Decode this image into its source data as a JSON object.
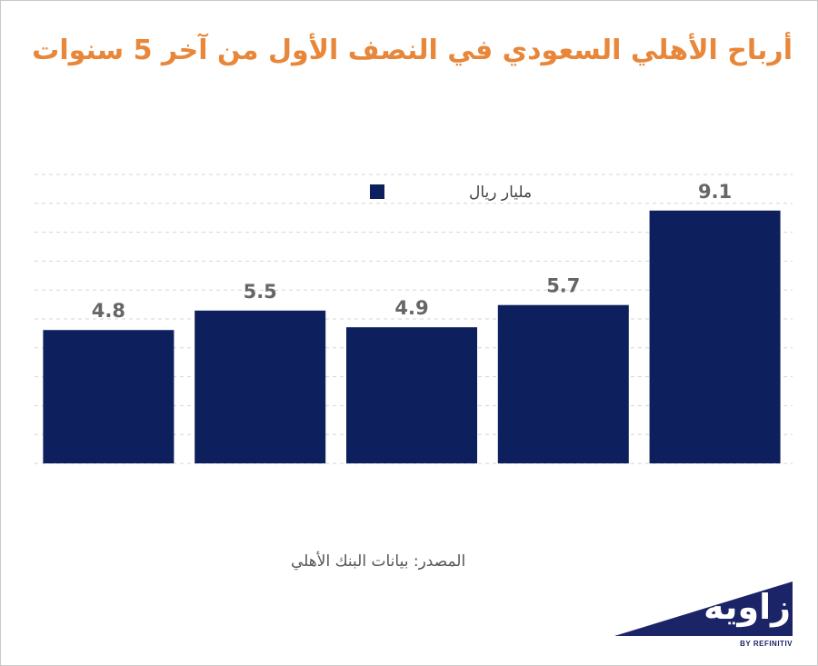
{
  "chart_data": {
    "type": "bar",
    "title": "أرباح الأهلي السعودي في النصف الأول من آخر 5 سنوات",
    "categories": [
      "",
      "",
      "",
      "",
      ""
    ],
    "series": [
      {
        "name": "مليار ريال",
        "values": [
          4.8,
          5.5,
          4.9,
          5.7,
          9.1
        ],
        "color": "#0d1f5c"
      }
    ],
    "ylim": [
      0,
      10.4
    ],
    "grid": true,
    "legend_position": "top-center",
    "data_labels": true
  },
  "source": "المصدر: بيانات البنك الأهلي",
  "logo": {
    "name": "زاوية",
    "subtitle": "BY REFINITIV"
  },
  "colors": {
    "title": "#e8873a",
    "bar": "#0d1f5c",
    "logo_bg": "#1a2466",
    "grid": "#d6d6d6",
    "label": "#666666"
  }
}
